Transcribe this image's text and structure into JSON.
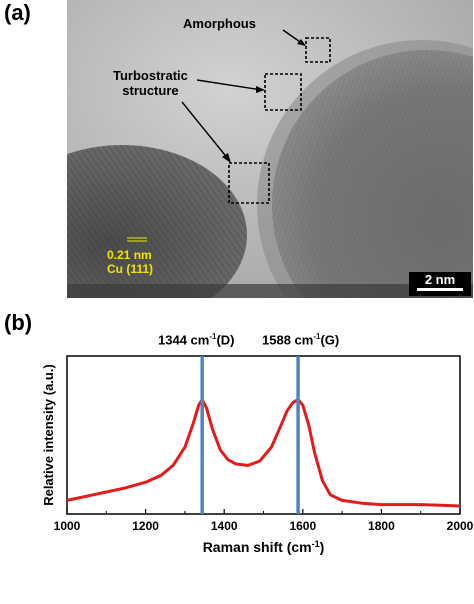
{
  "panels": {
    "a": {
      "label": "(a)",
      "annotations": {
        "amorphous": "Amorphous",
        "turbostratic_line1": "Turbostratic",
        "turbostratic_line2": "structure",
        "lattice_spacing": "0.21 nm",
        "lattice_plane": "Cu (111)",
        "scale_bar": "2 nm"
      }
    },
    "b": {
      "label": "(b)",
      "peak_labels": {
        "d_value": "1344 cm",
        "d_suffix": "(D)",
        "g_value": "1588 cm",
        "g_suffix": "(G)",
        "superscript": "-1"
      }
    }
  },
  "colors": {
    "spectrum": "#e41a1c",
    "peak_lines": "#4a86c5",
    "lattice_label": "#f2e600"
  },
  "chart_data": {
    "type": "line",
    "xlabel": "Raman shift (cm-1)",
    "ylabel": "Relative intensity (a.u.)",
    "xlim": [
      1000,
      2000
    ],
    "x_ticks": [
      "1000",
      "1200",
      "1400",
      "1600",
      "1800",
      "2000"
    ],
    "y_ticks": [],
    "grid": false,
    "vertical_markers": [
      1344,
      1588
    ],
    "series": [
      {
        "x": [
          1000,
          1050,
          1100,
          1150,
          1200,
          1240,
          1270,
          1300,
          1320,
          1335,
          1344,
          1355,
          1370,
          1390,
          1410,
          1430,
          1460,
          1490,
          1520,
          1545,
          1560,
          1575,
          1588,
          1600,
          1615,
          1630,
          1650,
          1670,
          1700,
          1750,
          1800,
          1850,
          1900,
          1950,
          2000
        ],
        "y": [
          0.04,
          0.07,
          0.1,
          0.13,
          0.17,
          0.22,
          0.29,
          0.42,
          0.58,
          0.72,
          0.76,
          0.7,
          0.55,
          0.4,
          0.33,
          0.3,
          0.29,
          0.32,
          0.42,
          0.58,
          0.68,
          0.74,
          0.76,
          0.72,
          0.58,
          0.38,
          0.18,
          0.08,
          0.04,
          0.02,
          0.01,
          0.01,
          0.01,
          0.005,
          0.0
        ]
      }
    ]
  }
}
